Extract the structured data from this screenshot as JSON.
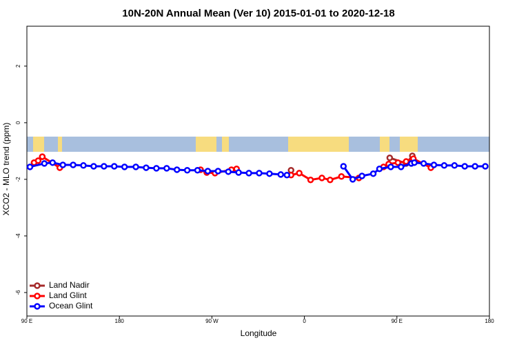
{
  "chart_data": {
    "type": "line",
    "title": "10N-20N Annual Mean (Ver 10)   2015-01-01 to 2020-12-18",
    "x_label": "Longitude",
    "y_label": "XCO2 - MLO trend (ppm)",
    "xlim": [
      90,
      540
    ],
    "xticks": [
      {
        "value": 90,
        "label": "90 E"
      },
      180,
      {
        "value": 270,
        "label": "90 W"
      },
      {
        "value": 360,
        "label": "0"
      },
      {
        "value": 450,
        "label": "90 E"
      },
      {
        "value": 540,
        "label": "180"
      }
    ],
    "ylim": [
      -6.83,
      3.41
    ],
    "yticks": [
      -6,
      -4,
      -2,
      0,
      2
    ],
    "legend": "bottom-left",
    "series": [
      {
        "name": "Land Nadir",
        "color": "#a52a2a",
        "x": [
          97,
          105,
          null,
          347,
          null,
          443,
          459,
          465
        ],
        "values": [
          -1.41,
          -1.2,
          null,
          -1.68,
          null,
          -1.24,
          -1.44,
          -1.17
        ]
      },
      {
        "name": "Land Glint",
        "color": "#ff0000",
        "x": [
          97,
          101,
          105,
          122,
          null,
          259,
          265,
          273,
          289,
          294,
          null,
          347,
          355,
          366,
          377,
          385,
          396,
          413,
          null,
          437,
          442,
          451,
          459,
          466,
          483
        ],
        "values": [
          -1.41,
          -1.34,
          -1.2,
          -1.59,
          null,
          -1.66,
          -1.76,
          -1.78,
          -1.66,
          -1.63,
          null,
          -1.85,
          -1.78,
          -2.02,
          -1.95,
          -2.02,
          -1.9,
          -1.95,
          null,
          -1.56,
          -1.46,
          -1.41,
          -1.37,
          -1.27,
          -1.59
        ]
      },
      {
        "name": "Ocean Glint",
        "color": "#0000ff",
        "x": [
          93,
          107,
          115,
          125,
          135,
          145,
          155,
          165,
          175,
          185,
          196,
          206,
          216,
          226,
          236,
          246,
          256,
          266,
          276,
          286,
          296,
          306,
          316,
          326,
          337,
          343,
          null,
          398,
          407,
          416,
          427,
          433,
          444,
          454,
          464,
          467,
          476,
          486,
          496,
          506,
          516,
          526,
          536
        ],
        "values": [
          -1.56,
          -1.44,
          -1.41,
          -1.49,
          -1.49,
          -1.51,
          -1.54,
          -1.54,
          -1.54,
          -1.56,
          -1.56,
          -1.59,
          -1.61,
          -1.61,
          -1.66,
          -1.68,
          -1.68,
          -1.71,
          -1.71,
          -1.73,
          -1.76,
          -1.78,
          -1.78,
          -1.8,
          -1.83,
          -1.85,
          null,
          -1.54,
          -2.0,
          -1.88,
          -1.8,
          -1.63,
          -1.56,
          -1.56,
          -1.44,
          -1.41,
          -1.44,
          -1.49,
          -1.51,
          -1.51,
          -1.54,
          -1.54,
          -1.54
        ]
      }
    ]
  }
}
